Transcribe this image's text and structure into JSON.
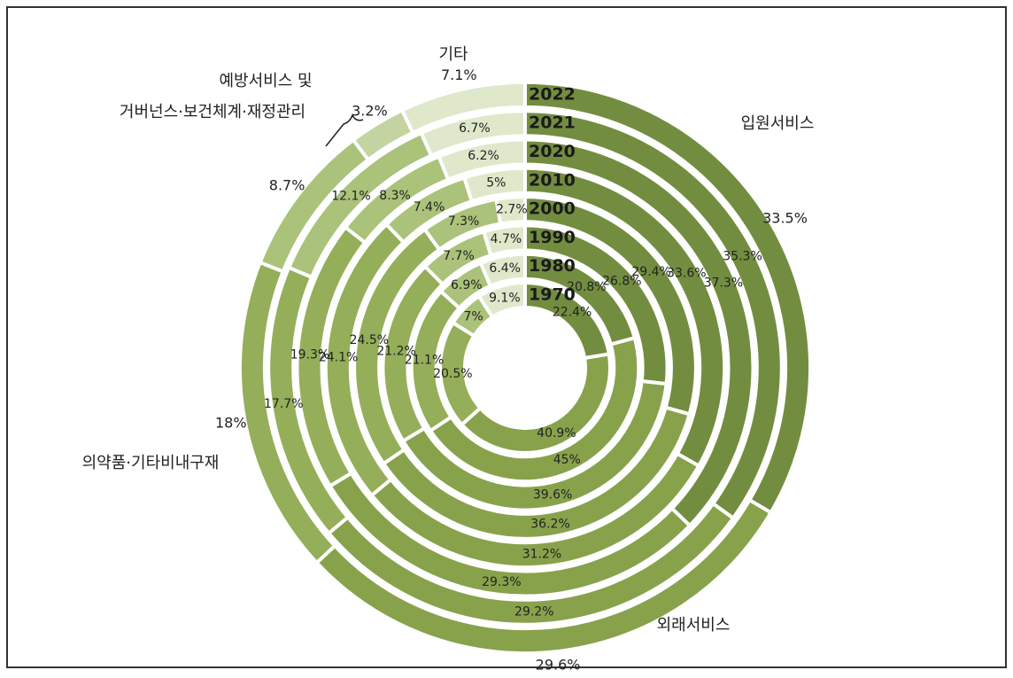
{
  "chart_data": {
    "type": "multi-donut",
    "categories": [
      "1970",
      "1980",
      "1990",
      "2000",
      "2010",
      "2020",
      "2021",
      "2022"
    ],
    "series": [
      {
        "name": "입원서비스",
        "color": "#738d40",
        "values": [
          22.4,
          20.8,
          26.8,
          29.4,
          33.6,
          37.3,
          35.3,
          33.5
        ]
      },
      {
        "name": "외래서비스",
        "color": "#88a24c",
        "values": [
          40.9,
          45.0,
          39.6,
          36.2,
          31.2,
          29.3,
          29.2,
          29.6
        ]
      },
      {
        "name": "의약품·기타비내구재",
        "color": "#95ae59",
        "values": [
          20.5,
          21.1,
          21.2,
          24.5,
          24.1,
          19.3,
          17.7,
          18.0
        ]
      },
      {
        "color": "#abc27a",
        "values": [
          7.0,
          6.9,
          7.7,
          7.3,
          7.4,
          8.3,
          12.1,
          8.7
        ]
      },
      {
        "name_lines": [
          "예방서비스 및",
          "거버넌스·보건체계·재정관리"
        ],
        "color": "#c4d4a0",
        "values": [
          null,
          null,
          null,
          null,
          null,
          null,
          null,
          3.2
        ]
      },
      {
        "name": "기타",
        "color": "#dfe8cb",
        "values": [
          9.1,
          6.4,
          4.7,
          2.7,
          5.0,
          6.2,
          6.7,
          7.1
        ]
      }
    ]
  }
}
